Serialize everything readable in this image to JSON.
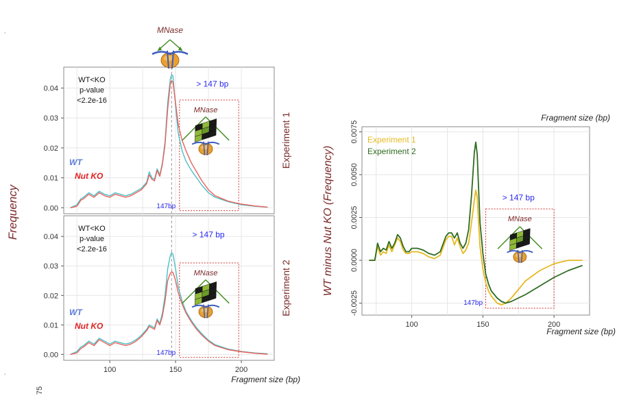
{
  "colors": {
    "wt": "#4dbfc6",
    "ko": "#e8615a",
    "exp1": "#e6b820",
    "exp2": "#2e6b1f",
    "title_red": "#7a2a28",
    "blue": "#2a2af0",
    "box_red": "#d03030",
    "green": "#3a8a1a",
    "grid": "#e6e6e6",
    "panel_border": "#8a8a8a"
  },
  "chart_data": [
    {
      "type": "line",
      "panel": "Experiment 1",
      "strip_label": "Experiment 1",
      "xlim": [
        65,
        225
      ],
      "ylim": [
        -0.002,
        0.047
      ],
      "x_ticks": [],
      "y_ticks": [
        0,
        0.01,
        0.02,
        0.03,
        0.04
      ],
      "y_tick_labels": [
        "0.00",
        "0.01",
        "0.02",
        "0.03",
        "0.04"
      ],
      "annotation_text": [
        "WT<KO",
        "p-value",
        "<2.2e-16"
      ],
      "vline_x": 147,
      "vline_label": "147bp",
      "box": {
        "x": [
          153,
          198
        ],
        "y": [
          -0.001,
          0.036
        ]
      },
      "box_label": "> 147  bp",
      "box_label_x": 178,
      "box_label_y": 0.0405,
      "mnase_label": "MNase",
      "legend": [
        {
          "name": "WT",
          "color": "wt"
        },
        {
          "name": "Nut KO",
          "color": "ko"
        }
      ],
      "series": [
        {
          "name": "WT",
          "color": "wt",
          "x": [
            70,
            75,
            78,
            80,
            84,
            88,
            92,
            96,
            100,
            104,
            108,
            112,
            116,
            120,
            124,
            126,
            128,
            130,
            132,
            134,
            136,
            138,
            140,
            142,
            144,
            146,
            147,
            148,
            150,
            152,
            155,
            158,
            162,
            166,
            170,
            175,
            180,
            190,
            200,
            210,
            220
          ],
          "y": [
            0.0,
            0.001,
            0.003,
            0.0035,
            0.005,
            0.004,
            0.0055,
            0.0045,
            0.004,
            0.005,
            0.0045,
            0.004,
            0.0045,
            0.0055,
            0.0065,
            0.0075,
            0.0085,
            0.012,
            0.01,
            0.0095,
            0.013,
            0.011,
            0.015,
            0.022,
            0.035,
            0.043,
            0.0445,
            0.044,
            0.034,
            0.025,
            0.019,
            0.0155,
            0.0125,
            0.01,
            0.0075,
            0.005,
            0.0035,
            0.002,
            0.001,
            0.0005,
            0.0002
          ]
        },
        {
          "name": "Nut KO",
          "color": "ko",
          "x": [
            70,
            75,
            78,
            80,
            84,
            88,
            92,
            96,
            100,
            104,
            108,
            112,
            116,
            120,
            124,
            126,
            128,
            130,
            132,
            134,
            136,
            138,
            140,
            142,
            144,
            146,
            147,
            148,
            150,
            152,
            155,
            158,
            162,
            166,
            170,
            175,
            180,
            190,
            200,
            210,
            220
          ],
          "y": [
            0.0,
            0.0005,
            0.0025,
            0.003,
            0.0045,
            0.0035,
            0.005,
            0.004,
            0.0035,
            0.0045,
            0.004,
            0.0035,
            0.004,
            0.005,
            0.006,
            0.007,
            0.008,
            0.011,
            0.0095,
            0.009,
            0.0125,
            0.0105,
            0.0145,
            0.021,
            0.033,
            0.0415,
            0.0425,
            0.042,
            0.035,
            0.028,
            0.0225,
            0.019,
            0.015,
            0.012,
            0.009,
            0.006,
            0.004,
            0.0022,
            0.0012,
            0.0006,
            0.0002
          ]
        }
      ]
    },
    {
      "type": "line",
      "panel": "Experiment 2",
      "strip_label": "Experiment 2",
      "xlim": [
        65,
        225
      ],
      "ylim": [
        -0.002,
        0.047
      ],
      "x_ticks": [
        100,
        150,
        200
      ],
      "x_tick_labels": [
        "100",
        "150",
        "200"
      ],
      "x_extra_label": "75",
      "xlabel": "Fragment size (bp)",
      "y_ticks": [
        0,
        0.01,
        0.02,
        0.03,
        0.04
      ],
      "y_tick_labels": [
        "0.00",
        "0.01",
        "0.02",
        "0.03",
        "0.04"
      ],
      "annotation_text": [
        "WT<KO",
        "p-value",
        "<2.2e-16"
      ],
      "vline_x": 147,
      "vline_label": "147bp",
      "box": {
        "x": [
          153,
          198
        ],
        "y": [
          -0.001,
          0.031
        ]
      },
      "box_label": "> 147  bp",
      "box_label_x": 175,
      "box_label_y": 0.0397,
      "mnase_label": "MNase",
      "legend": [
        {
          "name": "WT",
          "color": "wt"
        },
        {
          "name": "Nut KO",
          "color": "ko"
        }
      ],
      "series": [
        {
          "name": "WT",
          "color": "wt",
          "x": [
            70,
            75,
            78,
            80,
            84,
            88,
            92,
            96,
            100,
            104,
            108,
            112,
            116,
            120,
            124,
            126,
            128,
            130,
            132,
            134,
            136,
            138,
            140,
            142,
            144,
            146,
            147,
            148,
            150,
            152,
            155,
            158,
            162,
            166,
            170,
            175,
            180,
            190,
            200,
            210,
            220
          ],
          "y": [
            0.0,
            0.001,
            0.0025,
            0.003,
            0.0045,
            0.0035,
            0.0055,
            0.0045,
            0.0035,
            0.0045,
            0.004,
            0.0035,
            0.004,
            0.005,
            0.0065,
            0.0075,
            0.0085,
            0.01,
            0.0095,
            0.009,
            0.012,
            0.0105,
            0.014,
            0.02,
            0.029,
            0.0335,
            0.0345,
            0.034,
            0.029,
            0.023,
            0.018,
            0.0145,
            0.0115,
            0.009,
            0.007,
            0.0048,
            0.0033,
            0.0018,
            0.001,
            0.0005,
            0.0002
          ]
        },
        {
          "name": "Nut KO",
          "color": "ko",
          "x": [
            70,
            75,
            78,
            80,
            84,
            88,
            92,
            96,
            100,
            104,
            108,
            112,
            116,
            120,
            124,
            126,
            128,
            130,
            132,
            134,
            136,
            138,
            140,
            142,
            144,
            146,
            147,
            148,
            150,
            152,
            155,
            158,
            162,
            166,
            170,
            175,
            180,
            190,
            200,
            210,
            220
          ],
          "y": [
            0.0,
            0.0005,
            0.002,
            0.0025,
            0.004,
            0.003,
            0.005,
            0.004,
            0.003,
            0.004,
            0.0035,
            0.003,
            0.0035,
            0.0045,
            0.006,
            0.007,
            0.008,
            0.0095,
            0.009,
            0.0085,
            0.0115,
            0.01,
            0.013,
            0.018,
            0.025,
            0.0275,
            0.028,
            0.0278,
            0.025,
            0.021,
            0.017,
            0.014,
            0.011,
            0.0085,
            0.0065,
            0.0045,
            0.003,
            0.0016,
            0.0009,
            0.0004,
            0.0001
          ]
        }
      ]
    },
    {
      "type": "line",
      "panel": "Difference",
      "xlim": [
        65,
        225
      ],
      "ylim": [
        -0.0032,
        0.0078
      ],
      "x_ticks": [
        100,
        150,
        200
      ],
      "x_tick_labels": [
        "100",
        "150",
        "200"
      ],
      "xlabel": "Fragment size (bp)",
      "xlabel_top": "Fragment size (bp)",
      "ylabel": "WT minus Nut KO (Frequency)",
      "y_ticks": [
        -0.0025,
        0,
        0.0025,
        0.005,
        0.0075
      ],
      "y_tick_labels": [
        "-0.0025",
        "0.0000",
        "0.0025",
        "0.0050",
        "0.0075"
      ],
      "vline_label": "147bp",
      "vline_label_x": 147,
      "box": {
        "x": [
          152,
          200
        ],
        "y": [
          -0.0028,
          0.003
        ]
      },
      "box_label": "> 147  bp",
      "box_label_x": 175,
      "box_label_y": 0.0035,
      "mnase_label": "MNase",
      "legend": [
        {
          "name": "Experiment 1",
          "color": "exp1"
        },
        {
          "name": "Experiment 2",
          "color": "exp2"
        }
      ],
      "series": [
        {
          "name": "Experiment 1",
          "color": "exp1",
          "x": [
            70,
            74,
            76,
            78,
            80,
            82,
            84,
            86,
            88,
            90,
            92,
            94,
            96,
            98,
            100,
            104,
            108,
            112,
            116,
            120,
            124,
            126,
            128,
            130,
            132,
            134,
            136,
            138,
            140,
            142,
            144,
            145,
            146,
            147,
            148,
            150,
            152,
            154,
            156,
            158,
            160,
            163,
            166,
            170,
            175,
            180,
            190,
            200,
            210,
            220
          ],
          "y": [
            0,
            0,
            0.0008,
            0.0003,
            0.0005,
            0.0004,
            0.0009,
            0.0005,
            0.0009,
            0.0013,
            0.0011,
            0.0006,
            0.0004,
            0.0004,
            0.0005,
            0.0005,
            0.0004,
            0.0002,
            0.0001,
            0.0003,
            0.0012,
            0.0014,
            0.0014,
            0.0009,
            0.0013,
            0.0008,
            0.0004,
            0.0006,
            0.001,
            0.0022,
            0.0035,
            0.0041,
            0.0037,
            0.0022,
            0.0008,
            -0.0005,
            -0.0013,
            -0.0018,
            -0.0021,
            -0.0023,
            -0.0025,
            -0.0026,
            -0.0025,
            -0.0022,
            -0.0017,
            -0.0012,
            -0.0006,
            -0.0002,
            0,
            0
          ]
        },
        {
          "name": "Experiment 2",
          "color": "exp2",
          "x": [
            70,
            74,
            76,
            78,
            80,
            82,
            84,
            86,
            88,
            90,
            92,
            94,
            96,
            98,
            100,
            104,
            108,
            112,
            116,
            120,
            124,
            126,
            128,
            130,
            132,
            134,
            136,
            138,
            140,
            142,
            144,
            145,
            146,
            147,
            148,
            150,
            152,
            154,
            156,
            158,
            160,
            163,
            166,
            170,
            175,
            180,
            190,
            200,
            210,
            220
          ],
          "y": [
            0,
            0,
            0.001,
            0.0005,
            0.0007,
            0.0006,
            0.0011,
            0.0007,
            0.001,
            0.0015,
            0.0013,
            0.0008,
            0.0005,
            0.0005,
            0.0007,
            0.0007,
            0.0006,
            0.0004,
            0.0003,
            0.0005,
            0.0014,
            0.0016,
            0.0016,
            0.0013,
            0.0016,
            0.001,
            0.0007,
            0.001,
            0.0018,
            0.0038,
            0.0063,
            0.0069,
            0.0062,
            0.0042,
            0.0022,
            0.0004,
            -0.0008,
            -0.0014,
            -0.0018,
            -0.002,
            -0.0022,
            -0.0024,
            -0.0025,
            -0.0024,
            -0.0022,
            -0.002,
            -0.0015,
            -0.001,
            -0.0006,
            -0.0003
          ]
        }
      ]
    }
  ],
  "shared": {
    "ylabel_left": "Frequency",
    "top_mnase_label": "MNase",
    "corner_dot": "‚",
    "corner_dot2": "‘"
  }
}
